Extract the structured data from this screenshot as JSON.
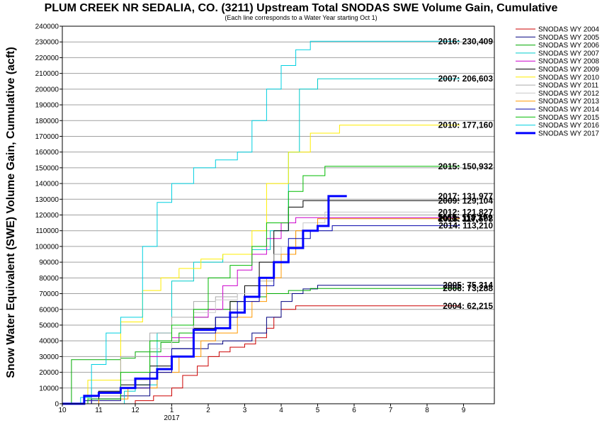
{
  "chart_data": {
    "type": "line",
    "title": "PLUM CREEK NR SEDALIA, CO. (3211) Upstream Total SNODAS SWE Volume Gain, Cumulative",
    "subtitle": "(Each line corresponds to a Water Year starting Oct 1)",
    "ylabel": "Snow Water Equivalent (SWE) Volume Gain, Cumulative (acft)",
    "xlabel": "",
    "x_ticks": [
      "10",
      "11",
      "12",
      "1",
      "2",
      "3",
      "4",
      "5",
      "6",
      "7",
      "8",
      "9"
    ],
    "x_year_label": "2017",
    "ylim": [
      0,
      240000
    ],
    "y_ticks": [
      "0",
      "10000",
      "20000",
      "30000",
      "40000",
      "50000",
      "60000",
      "70000",
      "80000",
      "90000",
      "100000",
      "110000",
      "120000",
      "130000",
      "140000",
      "150000",
      "160000",
      "170000",
      "180000",
      "190000",
      "200000",
      "210000",
      "220000",
      "230000",
      "240000"
    ],
    "grid": "horizontal",
    "legend_position": "right",
    "x_units": "months since Oct 1",
    "series": [
      {
        "name": "SNODAS WY 2004",
        "color": "#cc0000",
        "end_label": "2004: 62,215",
        "points": [
          [
            0,
            0
          ],
          [
            1.6,
            0
          ],
          [
            2.0,
            2000
          ],
          [
            2.5,
            5000
          ],
          [
            3.0,
            10000
          ],
          [
            3.3,
            18000
          ],
          [
            3.7,
            24000
          ],
          [
            4.0,
            30000
          ],
          [
            4.3,
            33000
          ],
          [
            4.6,
            36000
          ],
          [
            5.0,
            38000
          ],
          [
            5.3,
            42000
          ],
          [
            5.6,
            48000
          ],
          [
            5.8,
            55000
          ],
          [
            6.0,
            60000
          ],
          [
            6.4,
            62215
          ],
          [
            10.9,
            62215
          ]
        ]
      },
      {
        "name": "SNODAS WY 2005",
        "color": "#000080",
        "end_label": "2005: 75,314",
        "points": [
          [
            0,
            0
          ],
          [
            0.6,
            2000
          ],
          [
            1.6,
            5000
          ],
          [
            2.4,
            20000
          ],
          [
            3.0,
            30000
          ],
          [
            3.6,
            35000
          ],
          [
            4.0,
            38000
          ],
          [
            4.4,
            40000
          ],
          [
            5.2,
            45000
          ],
          [
            5.6,
            55000
          ],
          [
            6.0,
            65000
          ],
          [
            6.3,
            70000
          ],
          [
            6.6,
            73000
          ],
          [
            7.0,
            75314
          ],
          [
            10.9,
            75314
          ]
        ]
      },
      {
        "name": "SNODAS WY 2006",
        "color": "#00aa00",
        "end_label": "2006: 73,288",
        "points": [
          [
            0,
            0
          ],
          [
            0.25,
            28000
          ],
          [
            1.6,
            29000
          ],
          [
            2.0,
            33000
          ],
          [
            2.7,
            39000
          ],
          [
            3.2,
            45000
          ],
          [
            3.6,
            55000
          ],
          [
            4.0,
            60000
          ],
          [
            4.6,
            65000
          ],
          [
            5.0,
            68000
          ],
          [
            5.6,
            70000
          ],
          [
            6.2,
            72000
          ],
          [
            6.8,
            73288
          ],
          [
            10.9,
            73288
          ]
        ]
      },
      {
        "name": "SNODAS WY 2007",
        "color": "#00cccc",
        "end_label": "2007: 206,603",
        "points": [
          [
            0,
            0
          ],
          [
            1.6,
            0
          ],
          [
            1.7,
            8000
          ],
          [
            2.0,
            12000
          ],
          [
            2.6,
            45000
          ],
          [
            3.0,
            78000
          ],
          [
            3.6,
            90000
          ],
          [
            4.4,
            95000
          ],
          [
            5.2,
            98000
          ],
          [
            5.7,
            110000
          ],
          [
            6.2,
            160000
          ],
          [
            6.5,
            200000
          ],
          [
            7.0,
            206603
          ],
          [
            10.9,
            206603
          ]
        ]
      },
      {
        "name": "SNODAS WY 2008",
        "color": "#cc00cc",
        "end_label": "2008: 118,3??",
        "points": [
          [
            0,
            0
          ],
          [
            0.8,
            5000
          ],
          [
            1.6,
            10000
          ],
          [
            2.4,
            30000
          ],
          [
            3.0,
            42000
          ],
          [
            3.6,
            55000
          ],
          [
            4.0,
            60000
          ],
          [
            4.4,
            75000
          ],
          [
            4.8,
            85000
          ],
          [
            5.2,
            95000
          ],
          [
            5.6,
            105000
          ],
          [
            6.0,
            115000
          ],
          [
            6.4,
            118300
          ],
          [
            10.9,
            118300
          ]
        ]
      },
      {
        "name": "SNODAS WY 2009",
        "color": "#000000",
        "end_label": "2009: 129,104",
        "points": [
          [
            0,
            0
          ],
          [
            1.0,
            8000
          ],
          [
            1.6,
            12000
          ],
          [
            2.4,
            24000
          ],
          [
            3.0,
            35000
          ],
          [
            3.6,
            48000
          ],
          [
            4.2,
            55000
          ],
          [
            4.6,
            65000
          ],
          [
            5.0,
            75000
          ],
          [
            5.4,
            90000
          ],
          [
            5.8,
            110000
          ],
          [
            6.2,
            125000
          ],
          [
            6.6,
            129104
          ],
          [
            10.9,
            129104
          ]
        ]
      },
      {
        "name": "SNODAS WY 2010",
        "color": "#ffee00",
        "end_label": "2010: 177,160",
        "points": [
          [
            0,
            0
          ],
          [
            0.7,
            15000
          ],
          [
            1.6,
            52000
          ],
          [
            2.2,
            72000
          ],
          [
            2.7,
            80000
          ],
          [
            3.2,
            86000
          ],
          [
            3.8,
            92000
          ],
          [
            4.4,
            95000
          ],
          [
            5.2,
            110000
          ],
          [
            5.6,
            140000
          ],
          [
            6.2,
            160000
          ],
          [
            6.8,
            172000
          ],
          [
            7.6,
            177160
          ],
          [
            10.9,
            177160
          ]
        ]
      },
      {
        "name": "SNODAS WY 2011",
        "color": "#aaaaaa",
        "end_label": "2011: 117,7??",
        "points": [
          [
            0,
            0
          ],
          [
            0.8,
            10000
          ],
          [
            1.6,
            30000
          ],
          [
            2.4,
            45000
          ],
          [
            3.0,
            55000
          ],
          [
            3.6,
            65000
          ],
          [
            4.2,
            68000
          ],
          [
            4.8,
            70000
          ],
          [
            5.4,
            78000
          ],
          [
            5.8,
            95000
          ],
          [
            6.4,
            110000
          ],
          [
            7.0,
            117700
          ],
          [
            10.9,
            117700
          ]
        ]
      },
      {
        "name": "SNODAS WY 2012",
        "color": "#c8c8c8",
        "end_label": "2012: 121,827",
        "points": [
          [
            0,
            0
          ],
          [
            0.6,
            5000
          ],
          [
            1.6,
            15000
          ],
          [
            2.4,
            35000
          ],
          [
            3.0,
            48000
          ],
          [
            3.6,
            58000
          ],
          [
            4.2,
            66000
          ],
          [
            4.8,
            70000
          ],
          [
            5.4,
            80000
          ],
          [
            6.0,
            100000
          ],
          [
            6.6,
            115000
          ],
          [
            7.2,
            121827
          ],
          [
            10.9,
            121827
          ]
        ]
      },
      {
        "name": "SNODAS WY 2013",
        "color": "#ff9900",
        "end_label": "2013: 117,608",
        "points": [
          [
            0,
            0
          ],
          [
            1.0,
            3000
          ],
          [
            1.8,
            10000
          ],
          [
            2.6,
            20000
          ],
          [
            3.2,
            30000
          ],
          [
            3.8,
            40000
          ],
          [
            4.2,
            45000
          ],
          [
            4.8,
            55000
          ],
          [
            5.2,
            65000
          ],
          [
            5.6,
            80000
          ],
          [
            6.0,
            95000
          ],
          [
            6.4,
            110000
          ],
          [
            7.0,
            117608
          ],
          [
            10.9,
            117608
          ]
        ]
      },
      {
        "name": "SNODAS WY 2014",
        "color": "#0000aa",
        "end_label": "2014: 113,210",
        "points": [
          [
            0,
            0
          ],
          [
            0.8,
            3000
          ],
          [
            1.6,
            10000
          ],
          [
            2.4,
            20000
          ],
          [
            3.0,
            35000
          ],
          [
            3.6,
            45000
          ],
          [
            4.2,
            55000
          ],
          [
            4.8,
            65000
          ],
          [
            5.4,
            75000
          ],
          [
            5.8,
            90000
          ],
          [
            6.2,
            105000
          ],
          [
            6.8,
            110000
          ],
          [
            7.4,
            113210
          ],
          [
            10.9,
            113210
          ]
        ]
      },
      {
        "name": "SNODAS WY 2015",
        "color": "#00bb00",
        "end_label": "2015: 150,932",
        "points": [
          [
            0,
            0
          ],
          [
            0.7,
            3000
          ],
          [
            1.6,
            20000
          ],
          [
            2.4,
            40000
          ],
          [
            3.0,
            50000
          ],
          [
            3.6,
            60000
          ],
          [
            4.0,
            80000
          ],
          [
            4.6,
            88000
          ],
          [
            5.2,
            100000
          ],
          [
            5.6,
            115000
          ],
          [
            6.2,
            135000
          ],
          [
            6.6,
            145000
          ],
          [
            7.2,
            150932
          ],
          [
            10.9,
            150932
          ]
        ]
      },
      {
        "name": "SNODAS WY 2016",
        "color": "#00d0e0",
        "end_label": "2016: 230,409",
        "points": [
          [
            0,
            0
          ],
          [
            0.5,
            4000
          ],
          [
            0.8,
            25000
          ],
          [
            1.2,
            45000
          ],
          [
            1.6,
            55000
          ],
          [
            2.2,
            100000
          ],
          [
            2.6,
            128000
          ],
          [
            3.0,
            140000
          ],
          [
            3.6,
            150000
          ],
          [
            4.2,
            155000
          ],
          [
            4.8,
            160000
          ],
          [
            5.2,
            180000
          ],
          [
            5.6,
            200000
          ],
          [
            6.0,
            215000
          ],
          [
            6.4,
            225000
          ],
          [
            6.8,
            230409
          ],
          [
            10.9,
            230409
          ]
        ]
      },
      {
        "name": "SNODAS WY 2017",
        "color": "#0000ff",
        "end_label": "2017: 131,977",
        "thick": true,
        "points": [
          [
            0,
            0
          ],
          [
            0.6,
            5000
          ],
          [
            1.0,
            7000
          ],
          [
            1.6,
            10000
          ],
          [
            2.0,
            16000
          ],
          [
            2.6,
            22000
          ],
          [
            3.0,
            30000
          ],
          [
            3.6,
            47000
          ],
          [
            4.2,
            48000
          ],
          [
            4.6,
            58000
          ],
          [
            5.0,
            68000
          ],
          [
            5.4,
            80000
          ],
          [
            5.8,
            90000
          ],
          [
            6.2,
            99000
          ],
          [
            6.6,
            110000
          ],
          [
            7.0,
            113000
          ],
          [
            7.3,
            131977
          ],
          [
            7.8,
            131977
          ]
        ]
      }
    ]
  }
}
